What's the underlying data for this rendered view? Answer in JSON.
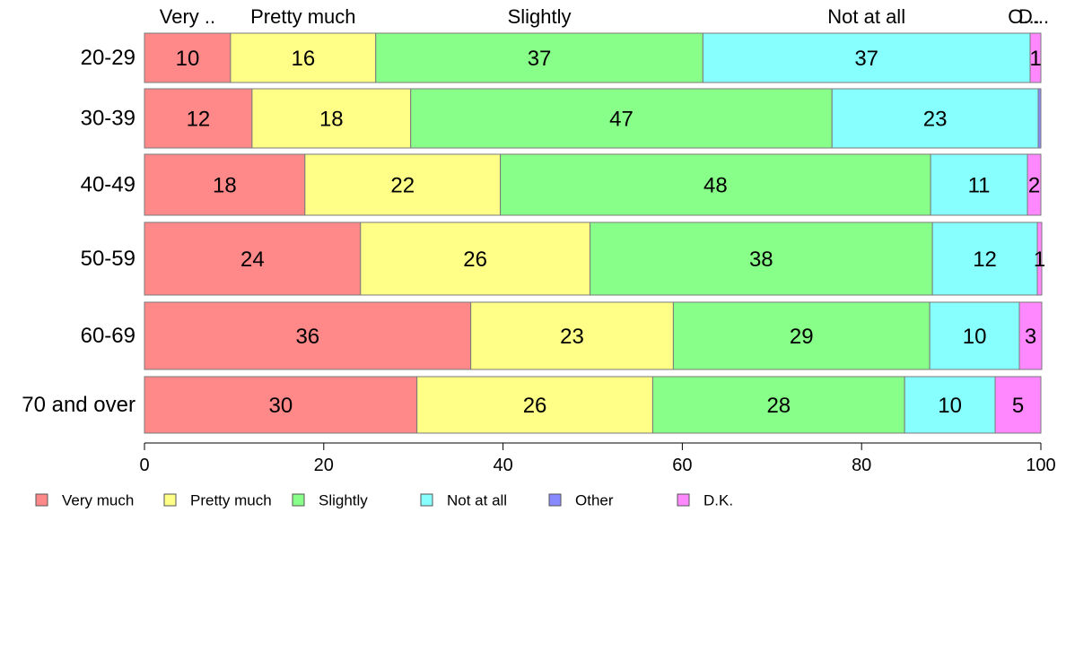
{
  "chart_data": {
    "type": "bar",
    "orientation": "horizontal",
    "stacked": true,
    "categories": [
      "20-29",
      "30-39",
      "40-49",
      "50-59",
      "60-69",
      "70 and over"
    ],
    "series": [
      {
        "name": "Very much",
        "color": "#ff8888",
        "values": [
          9.6,
          12.0,
          17.9,
          24.1,
          36.4,
          30.4
        ],
        "labels": [
          "10",
          "12",
          "18",
          "24",
          "36",
          "30"
        ]
      },
      {
        "name": "Pretty much",
        "color": "#ffff88",
        "values": [
          16.2,
          17.7,
          21.8,
          25.6,
          22.6,
          26.3
        ],
        "labels": [
          "16",
          "18",
          "22",
          "26",
          "23",
          "26"
        ]
      },
      {
        "name": "Slightly",
        "color": "#88ff88",
        "values": [
          36.5,
          47.0,
          48.0,
          38.2,
          28.6,
          28.1
        ],
        "labels": [
          "37",
          "47",
          "48",
          "38",
          "29",
          "28"
        ]
      },
      {
        "name": "Not at all",
        "color": "#88ffff",
        "values": [
          36.5,
          23.0,
          10.8,
          11.7,
          10.0,
          10.1
        ],
        "labels": [
          "37",
          "23",
          "11",
          "12",
          "10",
          "10"
        ]
      },
      {
        "name": "Other",
        "color": "#8888ff",
        "values": [
          0.0,
          0.3,
          0.0,
          0.0,
          0.0,
          0.0
        ],
        "labels": [
          "",
          "",
          "",
          "",
          "",
          ""
        ]
      },
      {
        "name": "D.K.",
        "color": "#ff88ff",
        "values": [
          1.2,
          0.0,
          1.5,
          0.5,
          2.5,
          5.1
        ],
        "labels": [
          "1",
          "",
          "2",
          "1",
          "3",
          "5"
        ]
      }
    ],
    "top_labels": [
      "Very ..",
      "Pretty much",
      "Slightly",
      "Not at all",
      "O...",
      "D..."
    ],
    "xlim": [
      0,
      100
    ],
    "xticks": [
      "0",
      "20",
      "40",
      "60",
      "80",
      "100"
    ],
    "grid": false,
    "legend_position": "bottom"
  }
}
